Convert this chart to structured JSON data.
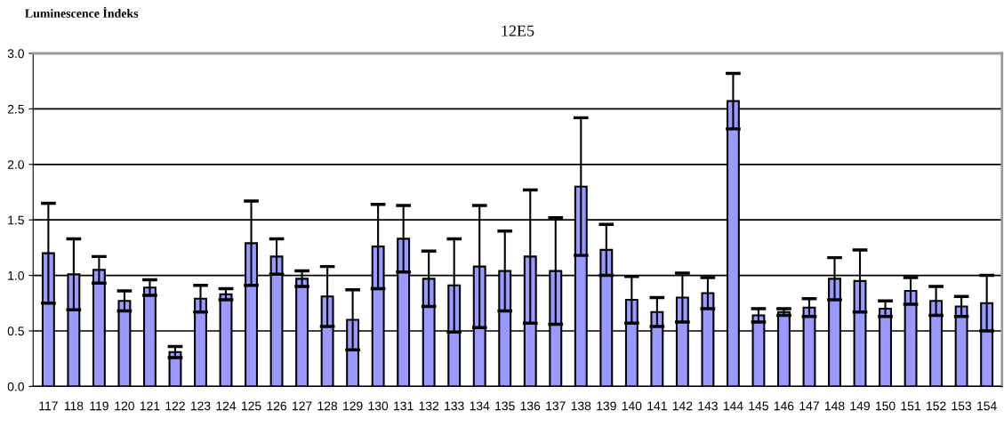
{
  "chart_data": {
    "type": "bar",
    "title": "12E5",
    "ylabel": "Luminescence İndeks",
    "categories": [
      "117",
      "118",
      "119",
      "120",
      "121",
      "122",
      "123",
      "124",
      "125",
      "126",
      "127",
      "128",
      "129",
      "130",
      "131",
      "132",
      "133",
      "134",
      "135",
      "136",
      "137",
      "138",
      "139",
      "140",
      "141",
      "142",
      "143",
      "144",
      "145",
      "146",
      "147",
      "148",
      "149",
      "150",
      "151",
      "152",
      "153",
      "154"
    ],
    "values": [
      1.2,
      1.01,
      1.05,
      0.77,
      0.89,
      0.31,
      0.79,
      0.83,
      1.29,
      1.17,
      0.97,
      0.81,
      0.6,
      1.26,
      1.33,
      0.97,
      0.91,
      1.08,
      1.04,
      1.17,
      1.04,
      1.8,
      1.23,
      0.78,
      0.67,
      0.8,
      0.84,
      2.57,
      0.64,
      0.67,
      0.71,
      0.97,
      0.95,
      0.7,
      0.86,
      0.77,
      0.72,
      0.75
    ],
    "errors": [
      0.45,
      0.32,
      0.12,
      0.09,
      0.07,
      0.05,
      0.12,
      0.05,
      0.38,
      0.16,
      0.07,
      0.27,
      0.27,
      0.38,
      0.3,
      0.25,
      0.42,
      0.55,
      0.36,
      0.6,
      0.48,
      0.62,
      0.23,
      0.21,
      0.13,
      0.22,
      0.14,
      0.25,
      0.06,
      0.03,
      0.08,
      0.19,
      0.28,
      0.07,
      0.12,
      0.13,
      0.09,
      0.25
    ],
    "color": "#9999ff",
    "ylim": [
      0,
      3.0
    ],
    "yticks": [
      {
        "value": 0,
        "label": "0.0"
      },
      {
        "value": 0.5,
        "label": "0.5"
      },
      {
        "value": 1.0,
        "label": "1.0"
      },
      {
        "value": 1.5,
        "label": "1.5"
      },
      {
        "value": 2.0,
        "label": "2.0"
      },
      {
        "value": 2.5,
        "label": "2.5"
      },
      {
        "value": 3.0,
        "label": "3.0"
      }
    ],
    "grid": "y",
    "legend": false
  }
}
